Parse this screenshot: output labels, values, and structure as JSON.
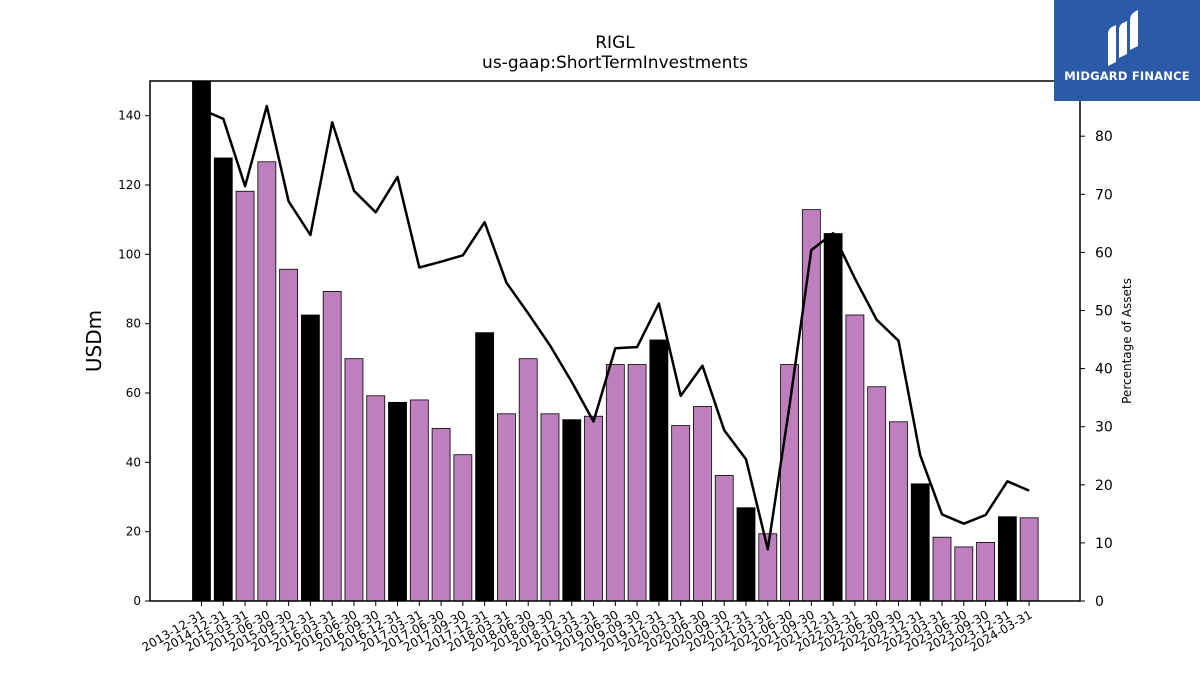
{
  "chart_data": {
    "type": "bar",
    "title": "RIGL",
    "subtitle": "us-gaap:ShortTermInvestments",
    "ylabel": "USDm",
    "ylabel_right": "Percentage of Assets",
    "ylim": [
      0,
      150
    ],
    "ylim_right": [
      0,
      89.5
    ],
    "yticks": [
      0,
      20,
      40,
      60,
      80,
      100,
      120,
      140
    ],
    "yticks_right": [
      0,
      10,
      20,
      30,
      40,
      50,
      60,
      70,
      80
    ],
    "categories": [
      "2013-12-31",
      "2014-12-31",
      "2015-03-31",
      "2015-06-30",
      "2015-09-30",
      "2015-12-31",
      "2016-03-31",
      "2016-06-30",
      "2016-09-30",
      "2016-12-31",
      "2017-03-31",
      "2017-06-30",
      "2017-09-30",
      "2017-12-31",
      "2018-03-31",
      "2018-06-30",
      "2018-09-30",
      "2018-12-31",
      "2019-03-31",
      "2019-06-30",
      "2019-09-30",
      "2019-12-31",
      "2020-03-31",
      "2020-06-30",
      "2020-09-30",
      "2020-12-31",
      "2021-03-31",
      "2021-06-30",
      "2021-09-30",
      "2021-12-31",
      "2022-03-31",
      "2022-06-30",
      "2022-09-30",
      "2022-12-31",
      "2023-03-31",
      "2023-06-30",
      "2023-09-30",
      "2023-12-31",
      "2024-03-31"
    ],
    "series": [
      {
        "kind": "bar",
        "axis": "left",
        "values": [
          150.5,
          127.8,
          118.2,
          126.7,
          95.7,
          82.5,
          89.3,
          69.9,
          59.2,
          57.3,
          58.0,
          49.8,
          42.2,
          77.4,
          54.0,
          69.9,
          54.0,
          52.3,
          53.3,
          68.2,
          68.2,
          75.3,
          50.6,
          56.1,
          36.2,
          26.9,
          19.4,
          68.2,
          112.9,
          106.0,
          82.5,
          61.8,
          51.7,
          33.8,
          18.4,
          15.6,
          16.9,
          24.3,
          24.0
        ],
        "colors": [
          "#000000",
          "#000000",
          "#bf7fbf",
          "#bf7fbf",
          "#bf7fbf",
          "#000000",
          "#bf7fbf",
          "#bf7fbf",
          "#bf7fbf",
          "#000000",
          "#bf7fbf",
          "#bf7fbf",
          "#bf7fbf",
          "#000000",
          "#bf7fbf",
          "#bf7fbf",
          "#bf7fbf",
          "#000000",
          "#bf7fbf",
          "#bf7fbf",
          "#bf7fbf",
          "#000000",
          "#bf7fbf",
          "#bf7fbf",
          "#bf7fbf",
          "#000000",
          "#bf7fbf",
          "#bf7fbf",
          "#bf7fbf",
          "#000000",
          "#bf7fbf",
          "#bf7fbf",
          "#bf7fbf",
          "#000000",
          "#bf7fbf",
          "#bf7fbf",
          "#bf7fbf",
          "#000000",
          "#bf7fbf"
        ]
      },
      {
        "kind": "line",
        "axis": "right",
        "color": "#000000",
        "values": [
          84.6,
          83.0,
          71.4,
          85.2,
          68.8,
          63.0,
          82.4,
          70.6,
          66.9,
          73.0,
          57.4,
          58.4,
          59.5,
          65.2,
          54.8,
          49.5,
          44.0,
          37.7,
          30.9,
          43.5,
          43.7,
          51.2,
          35.3,
          40.5,
          29.4,
          24.4,
          8.9,
          33.7,
          60.4,
          63.3,
          55.5,
          48.4,
          44.8,
          25.1,
          14.9,
          13.3,
          14.8,
          20.6,
          19.0
        ]
      }
    ],
    "grid": false,
    "legend": "none"
  },
  "logo": {
    "text": "MIDGARD FINANCE",
    "background": "#2a5aa8"
  }
}
